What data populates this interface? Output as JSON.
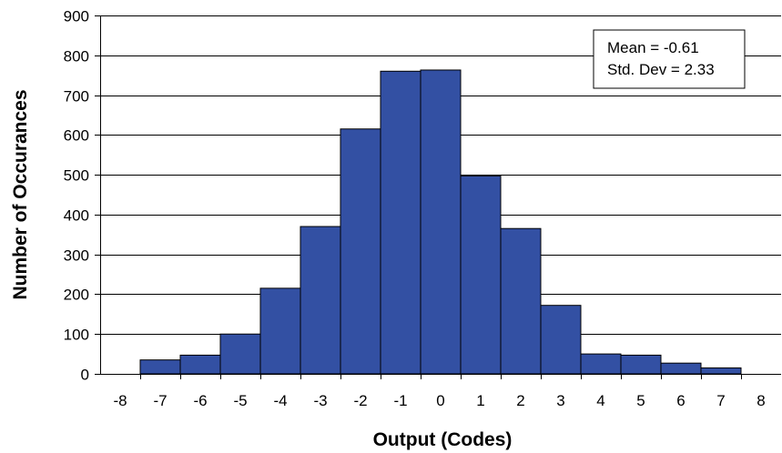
{
  "chart_data": {
    "type": "bar",
    "title": "",
    "xlabel": "Output (Codes)",
    "ylabel": "Number of Occurances",
    "x_ticks": [
      "-8",
      "-7",
      "-6",
      "-5",
      "-4",
      "-3",
      "-2",
      "-1",
      "0",
      "1",
      "2",
      "3",
      "4",
      "5",
      "6",
      "7",
      "8"
    ],
    "y_ticks": [
      "0",
      "100",
      "200",
      "300",
      "400",
      "500",
      "600",
      "700",
      "800",
      "900"
    ],
    "ylim": [
      0,
      900
    ],
    "xlim": [
      -8,
      8
    ],
    "grid": "horizontal",
    "legend": "none",
    "bins": [
      {
        "x": -7,
        "value": 35
      },
      {
        "x": -6,
        "value": 47
      },
      {
        "x": -5,
        "value": 100
      },
      {
        "x": -4,
        "value": 215
      },
      {
        "x": -3,
        "value": 370
      },
      {
        "x": -2,
        "value": 615
      },
      {
        "x": -1,
        "value": 760
      },
      {
        "x": 0,
        "value": 763
      },
      {
        "x": 1,
        "value": 497
      },
      {
        "x": 2,
        "value": 365
      },
      {
        "x": 3,
        "value": 172
      },
      {
        "x": 4,
        "value": 50
      },
      {
        "x": 5,
        "value": 47
      },
      {
        "x": 6,
        "value": 27
      },
      {
        "x": 7,
        "value": 15
      }
    ],
    "stats": {
      "mean_label": "Mean = -0.61",
      "std_label": "Std. Dev = 2.33",
      "placement": "top-right"
    },
    "colors": {
      "bar_fill": "#3350A3",
      "bar_stroke": "#000000",
      "grid": "#000000"
    }
  }
}
